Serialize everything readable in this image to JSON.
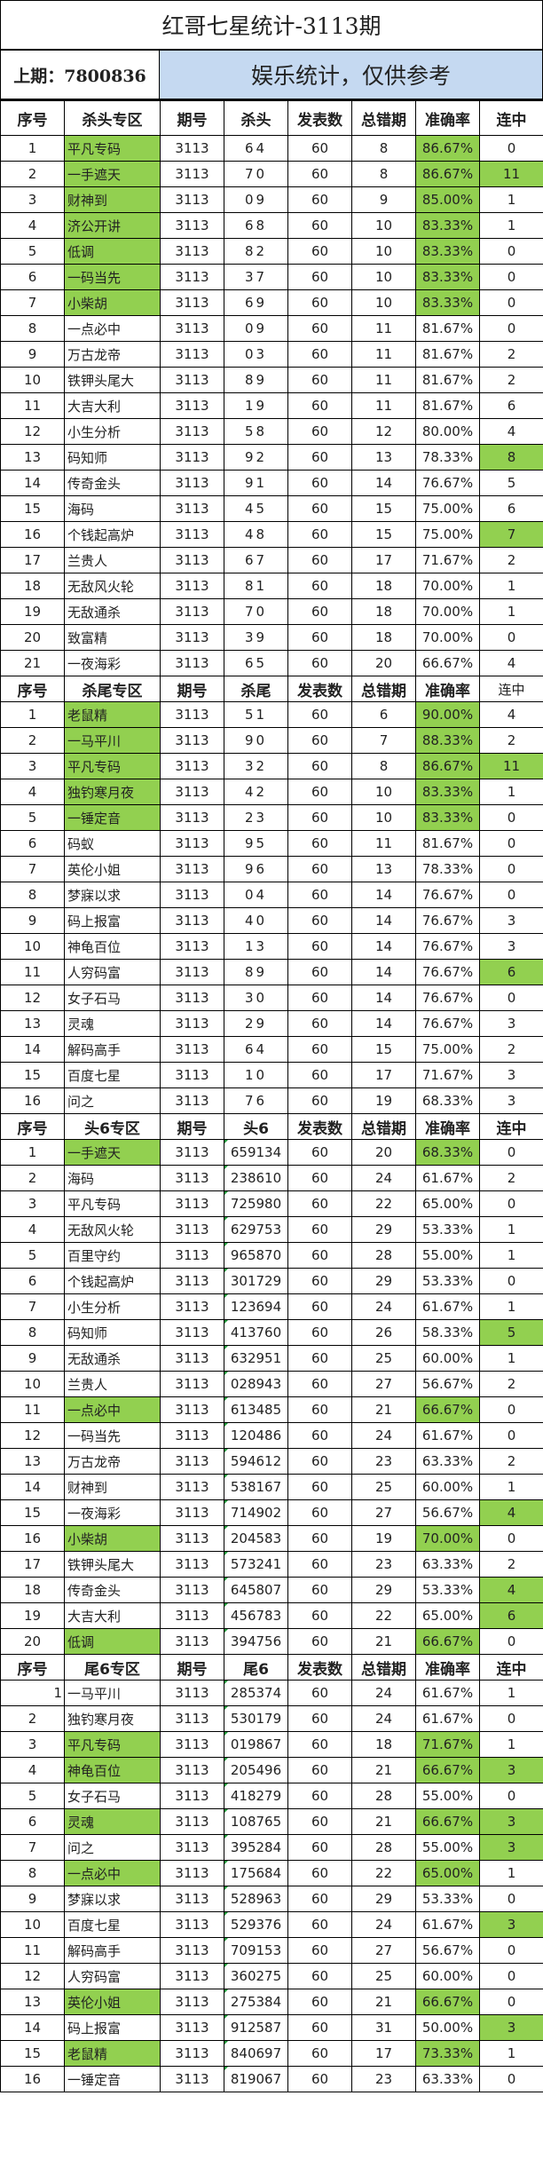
{
  "title": "红哥七星统计-3113期",
  "last_draw": "上期：7800836",
  "notice": "娱乐统计，仅供参考",
  "colors": {
    "highlight": "#92d050",
    "notice_bg": "#c5d9f1"
  },
  "sections": [
    {
      "headers": [
        "序号",
        "杀头专区",
        "期号",
        "杀头",
        "发表数",
        "总错期",
        "准确率",
        "连中"
      ],
      "rows": [
        [
          "1",
          "平凡专码",
          "3113",
          "64",
          "60",
          "8",
          "86.67%",
          "0",
          [
            "name",
            "rate"
          ]
        ],
        [
          "2",
          "一手遮天",
          "3113",
          "70",
          "60",
          "8",
          "86.67%",
          "11",
          [
            "name",
            "rate",
            "streak"
          ]
        ],
        [
          "3",
          "财神到",
          "3113",
          "09",
          "60",
          "9",
          "85.00%",
          "1",
          [
            "name",
            "rate"
          ]
        ],
        [
          "4",
          "济公开讲",
          "3113",
          "68",
          "60",
          "10",
          "83.33%",
          "1",
          [
            "name",
            "rate"
          ]
        ],
        [
          "5",
          "低调",
          "3113",
          "82",
          "60",
          "10",
          "83.33%",
          "0",
          [
            "name",
            "rate"
          ]
        ],
        [
          "6",
          "一码当先",
          "3113",
          "37",
          "60",
          "10",
          "83.33%",
          "0",
          [
            "name",
            "rate"
          ]
        ],
        [
          "7",
          "小柴胡",
          "3113",
          "69",
          "60",
          "10",
          "83.33%",
          "0",
          [
            "name",
            "rate"
          ]
        ],
        [
          "8",
          "一点必中",
          "3113",
          "09",
          "60",
          "11",
          "81.67%",
          "0",
          []
        ],
        [
          "9",
          "万古龙帝",
          "3113",
          "03",
          "60",
          "11",
          "81.67%",
          "2",
          []
        ],
        [
          "10",
          "铁钾头尾大",
          "3113",
          "89",
          "60",
          "11",
          "81.67%",
          "2",
          []
        ],
        [
          "11",
          "大吉大利",
          "3113",
          "19",
          "60",
          "11",
          "81.67%",
          "6",
          []
        ],
        [
          "12",
          "小生分析",
          "3113",
          "58",
          "60",
          "12",
          "80.00%",
          "4",
          []
        ],
        [
          "13",
          "码知师",
          "3113",
          "92",
          "60",
          "13",
          "78.33%",
          "8",
          [
            "streak"
          ]
        ],
        [
          "14",
          "传奇金头",
          "3113",
          "91",
          "60",
          "14",
          "76.67%",
          "5",
          []
        ],
        [
          "15",
          "海码",
          "3113",
          "45",
          "60",
          "15",
          "75.00%",
          "6",
          []
        ],
        [
          "16",
          "个钱起高炉",
          "3113",
          "48",
          "60",
          "15",
          "75.00%",
          "7",
          [
            "streak"
          ]
        ],
        [
          "17",
          "兰贵人",
          "3113",
          "67",
          "60",
          "17",
          "71.67%",
          "2",
          []
        ],
        [
          "18",
          "无敌风火轮",
          "3113",
          "81",
          "60",
          "18",
          "70.00%",
          "1",
          []
        ],
        [
          "19",
          "无敌通杀",
          "3113",
          "70",
          "60",
          "18",
          "70.00%",
          "1",
          []
        ],
        [
          "20",
          "致富精",
          "3113",
          "39",
          "60",
          "18",
          "70.00%",
          "0",
          []
        ],
        [
          "21",
          "一夜海彩",
          "3113",
          "65",
          "60",
          "20",
          "66.67%",
          "4",
          []
        ]
      ]
    },
    {
      "headers": [
        "序号",
        "杀尾专区",
        "期号",
        "杀尾",
        "发表数",
        "总错期",
        "准确率",
        "连中"
      ],
      "rows": [
        [
          "1",
          "老鼠精",
          "3113",
          "51",
          "60",
          "6",
          "90.00%",
          "4",
          [
            "name",
            "rate"
          ]
        ],
        [
          "2",
          "一马平川",
          "3113",
          "90",
          "60",
          "7",
          "88.33%",
          "2",
          [
            "name",
            "rate"
          ]
        ],
        [
          "3",
          "平凡专码",
          "3113",
          "32",
          "60",
          "8",
          "86.67%",
          "11",
          [
            "name",
            "rate",
            "streak"
          ]
        ],
        [
          "4",
          "独钓寒月夜",
          "3113",
          "42",
          "60",
          "10",
          "83.33%",
          "1",
          [
            "name",
            "rate"
          ]
        ],
        [
          "5",
          "一锤定音",
          "3113",
          "23",
          "60",
          "10",
          "83.33%",
          "0",
          [
            "name",
            "rate"
          ]
        ],
        [
          "6",
          "码蚁",
          "3113",
          "95",
          "60",
          "11",
          "81.67%",
          "0",
          []
        ],
        [
          "7",
          "英伦小姐",
          "3113",
          "96",
          "60",
          "13",
          "78.33%",
          "0",
          []
        ],
        [
          "8",
          "梦寐以求",
          "3113",
          "04",
          "60",
          "14",
          "76.67%",
          "0",
          []
        ],
        [
          "9",
          "码上报富",
          "3113",
          "40",
          "60",
          "14",
          "76.67%",
          "3",
          []
        ],
        [
          "10",
          "神龟百位",
          "3113",
          "13",
          "60",
          "14",
          "76.67%",
          "3",
          []
        ],
        [
          "11",
          "人穷码富",
          "3113",
          "89",
          "60",
          "14",
          "76.67%",
          "6",
          [
            "streak"
          ]
        ],
        [
          "12",
          "女子石马",
          "3113",
          "30",
          "60",
          "14",
          "76.67%",
          "0",
          []
        ],
        [
          "13",
          "灵魂",
          "3113",
          "29",
          "60",
          "14",
          "76.67%",
          "3",
          []
        ],
        [
          "14",
          "解码高手",
          "3113",
          "64",
          "60",
          "15",
          "75.00%",
          "2",
          []
        ],
        [
          "15",
          "百度七星",
          "3113",
          "10",
          "60",
          "17",
          "71.67%",
          "3",
          []
        ],
        [
          "16",
          "问之",
          "3113",
          "76",
          "60",
          "19",
          "68.33%",
          "3",
          []
        ]
      ]
    },
    {
      "headers": [
        "序号",
        "头6专区",
        "期号",
        "头6",
        "发表数",
        "总错期",
        "准确率",
        "连中"
      ],
      "rows": [
        [
          "1",
          "一手遮天",
          "3113",
          "659134",
          "60",
          "20",
          "68.33%",
          "0",
          [
            "name",
            "rate"
          ]
        ],
        [
          "2",
          "海码",
          "3113",
          "238610",
          "60",
          "24",
          "61.67%",
          "2",
          []
        ],
        [
          "3",
          "平凡专码",
          "3113",
          "725980",
          "60",
          "22",
          "65.00%",
          "0",
          []
        ],
        [
          "4",
          "无敌风火轮",
          "3113",
          "629753",
          "60",
          "29",
          "53.33%",
          "1",
          []
        ],
        [
          "5",
          "百里守约",
          "3113",
          "965870",
          "60",
          "28",
          "55.00%",
          "1",
          []
        ],
        [
          "6",
          "个钱起高炉",
          "3113",
          "301729",
          "60",
          "29",
          "53.33%",
          "0",
          []
        ],
        [
          "7",
          "小生分析",
          "3113",
          "123694",
          "60",
          "24",
          "61.67%",
          "1",
          []
        ],
        [
          "8",
          "码知师",
          "3113",
          "413760",
          "60",
          "26",
          "58.33%",
          "5",
          [
            "streak"
          ]
        ],
        [
          "9",
          "无敌通杀",
          "3113",
          "632951",
          "60",
          "25",
          "60.00%",
          "1",
          []
        ],
        [
          "10",
          "兰贵人",
          "3113",
          "028943",
          "60",
          "27",
          "56.67%",
          "2",
          []
        ],
        [
          "11",
          "一点必中",
          "3113",
          "613485",
          "60",
          "21",
          "66.67%",
          "0",
          [
            "name",
            "rate"
          ]
        ],
        [
          "12",
          "一码当先",
          "3113",
          "120486",
          "60",
          "24",
          "61.67%",
          "0",
          []
        ],
        [
          "13",
          "万古龙帝",
          "3113",
          "594612",
          "60",
          "23",
          "63.33%",
          "2",
          []
        ],
        [
          "14",
          "财神到",
          "3113",
          "538167",
          "60",
          "25",
          "60.00%",
          "1",
          []
        ],
        [
          "15",
          "一夜海彩",
          "3113",
          "714902",
          "60",
          "27",
          "56.67%",
          "4",
          [
            "streak"
          ]
        ],
        [
          "16",
          "小柴胡",
          "3113",
          "204583",
          "60",
          "19",
          "70.00%",
          "0",
          [
            "name",
            "rate"
          ]
        ],
        [
          "17",
          "铁钾头尾大",
          "3113",
          "573241",
          "60",
          "23",
          "63.33%",
          "2",
          []
        ],
        [
          "18",
          "传奇金头",
          "3113",
          "645807",
          "60",
          "29",
          "53.33%",
          "4",
          [
            "streak"
          ]
        ],
        [
          "19",
          "大吉大利",
          "3113",
          "456783",
          "60",
          "22",
          "65.00%",
          "6",
          [
            "streak"
          ]
        ],
        [
          "20",
          "低调",
          "3113",
          "394756",
          "60",
          "21",
          "66.67%",
          "0",
          [
            "name",
            "rate"
          ]
        ]
      ]
    },
    {
      "headers": [
        "序号",
        "尾6专区",
        "期号",
        "尾6",
        "发表数",
        "总错期",
        "准确率",
        "连中"
      ],
      "rows": [
        [
          "1",
          "一马平川",
          "3113",
          "285374",
          "60",
          "24",
          "61.67%",
          "1",
          []
        ],
        [
          "2",
          "独钓寒月夜",
          "3113",
          "530179",
          "60",
          "24",
          "61.67%",
          "0",
          []
        ],
        [
          "3",
          "平凡专码",
          "3113",
          "019867",
          "60",
          "18",
          "71.67%",
          "1",
          [
            "name",
            "rate"
          ]
        ],
        [
          "4",
          "神龟百位",
          "3113",
          "205496",
          "60",
          "21",
          "66.67%",
          "3",
          [
            "name",
            "rate",
            "streak"
          ]
        ],
        [
          "5",
          "女子石马",
          "3113",
          "418279",
          "60",
          "28",
          "55.00%",
          "0",
          []
        ],
        [
          "6",
          "灵魂",
          "3113",
          "108765",
          "60",
          "21",
          "66.67%",
          "3",
          [
            "name",
            "rate",
            "streak"
          ]
        ],
        [
          "7",
          "问之",
          "3113",
          "395284",
          "60",
          "28",
          "55.00%",
          "3",
          [
            "streak"
          ]
        ],
        [
          "8",
          "一点必中",
          "3113",
          "175684",
          "60",
          "22",
          "65.00%",
          "1",
          [
            "name",
            "rate"
          ]
        ],
        [
          "9",
          "梦寐以求",
          "3113",
          "528963",
          "60",
          "29",
          "53.33%",
          "0",
          []
        ],
        [
          "10",
          "百度七星",
          "3113",
          "529376",
          "60",
          "24",
          "61.67%",
          "3",
          [
            "streak"
          ]
        ],
        [
          "11",
          "解码高手",
          "3113",
          "709153",
          "60",
          "27",
          "56.67%",
          "0",
          []
        ],
        [
          "12",
          "人穷码富",
          "3113",
          "360275",
          "60",
          "25",
          "60.00%",
          "0",
          []
        ],
        [
          "13",
          "英伦小姐",
          "3113",
          "275384",
          "60",
          "21",
          "66.67%",
          "0",
          [
            "name",
            "rate"
          ]
        ],
        [
          "14",
          "码上报富",
          "3113",
          "912587",
          "60",
          "31",
          "50.00%",
          "3",
          [
            "streak"
          ]
        ],
        [
          "15",
          "老鼠精",
          "3113",
          "840697",
          "60",
          "17",
          "73.33%",
          "1",
          [
            "name",
            "rate"
          ]
        ],
        [
          "16",
          "一锤定音",
          "3113",
          "819067",
          "60",
          "23",
          "63.33%",
          "0",
          []
        ]
      ]
    }
  ]
}
